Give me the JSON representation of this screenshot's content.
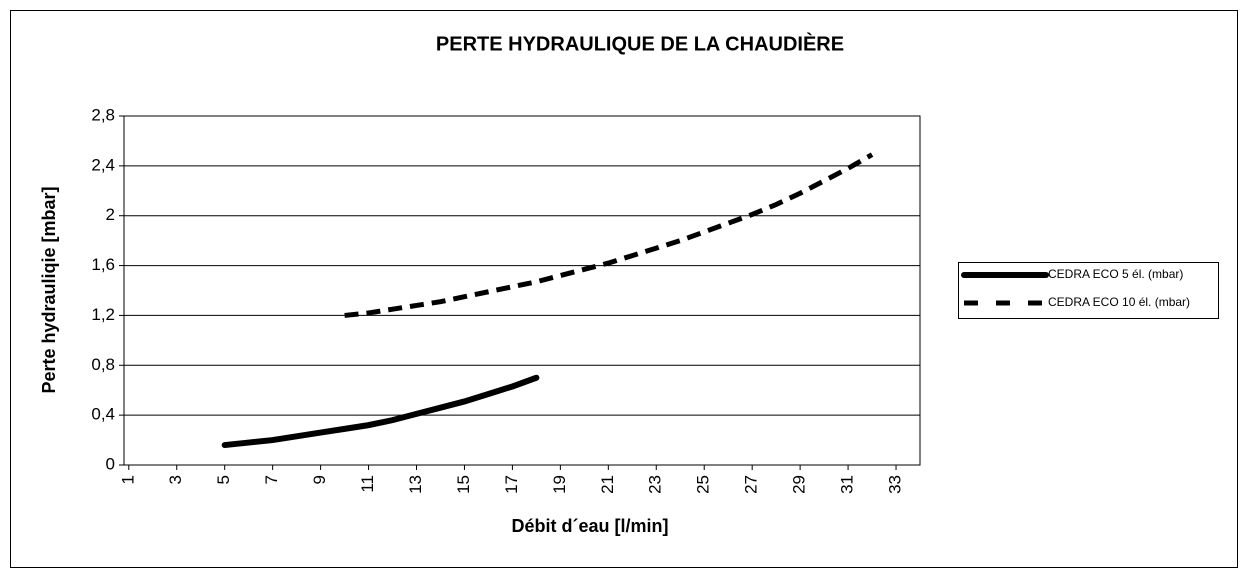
{
  "chart_data": {
    "type": "line",
    "title": "PERTE HYDRAULIQUE DE LA CHAUDIÈRE",
    "x_label": "Débit d´eau [l/min]",
    "y_label": "Perte hydrauliqie [mbar]",
    "xlim": [
      0.8,
      34
    ],
    "xticks": [
      1,
      3,
      5,
      7,
      9,
      11,
      13,
      15,
      17,
      19,
      21,
      23,
      25,
      27,
      29,
      31,
      33
    ],
    "ylim": [
      0,
      2.8
    ],
    "yticks": [
      0,
      {
        "value": 0.4,
        "label": "0,4"
      },
      {
        "value": 0.8,
        "label": "0,8"
      },
      {
        "value": 1.2,
        "label": "1,2"
      },
      {
        "value": 1.6,
        "label": "1,6"
      },
      2,
      {
        "value": 2.4,
        "label": "2,4"
      },
      {
        "value": 2.8,
        "label": "2,8"
      }
    ],
    "grid": true,
    "legend": "right",
    "series": [
      {
        "name": "CEDRA ECO 5 él. (mbar)",
        "color": "#000000",
        "style": "solid",
        "x": [
          5,
          6,
          7,
          8,
          9,
          10,
          11,
          12,
          13,
          14,
          15,
          16,
          17,
          18
        ],
        "values": [
          0.16,
          0.18,
          0.2,
          0.23,
          0.26,
          0.29,
          0.32,
          0.36,
          0.41,
          0.46,
          0.51,
          0.57,
          0.63,
          0.7
        ]
      },
      {
        "name": "CEDRA ECO 10 él. (mbar)",
        "color": "#000000",
        "style": "dashed",
        "x": [
          10,
          11,
          12,
          13,
          14,
          15,
          16,
          17,
          18,
          19,
          20,
          21,
          22,
          23,
          24,
          25,
          26,
          27,
          28,
          29,
          30,
          31,
          32
        ],
        "values": [
          1.2,
          1.22,
          1.25,
          1.28,
          1.31,
          1.35,
          1.39,
          1.43,
          1.47,
          1.52,
          1.57,
          1.62,
          1.68,
          1.74,
          1.8,
          1.87,
          1.94,
          2.01,
          2.09,
          2.18,
          2.28,
          2.38,
          2.49
        ]
      }
    ]
  }
}
